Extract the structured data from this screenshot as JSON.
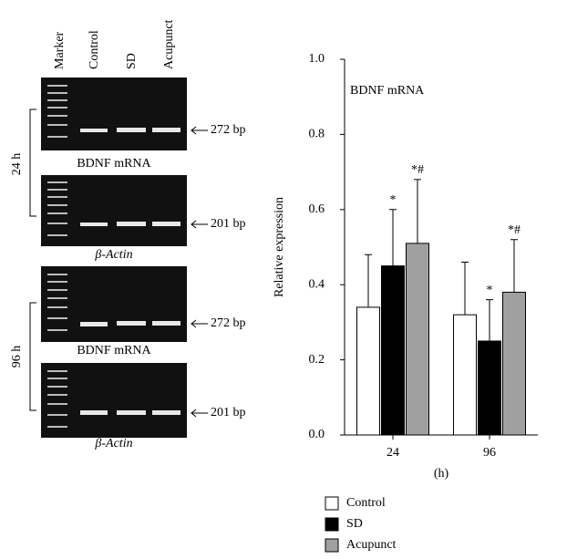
{
  "gel": {
    "lanes": [
      "Marker",
      "Control",
      "SD",
      "Acupunct"
    ],
    "time_labels": [
      "24 h",
      "96 h"
    ],
    "panels": [
      {
        "label": "BDNF mRNA",
        "size": "272 bp"
      },
      {
        "label": "β-Actin",
        "size": "201 bp"
      },
      {
        "label": "BDNF mRNA",
        "size": "272 bp"
      },
      {
        "label": "β-Actin",
        "size": "201 bp"
      }
    ]
  },
  "chart_data": {
    "type": "bar",
    "title": "BDNF mRNA",
    "y_label": "Relative expression",
    "x_label": "(h)",
    "categories": [
      "24",
      "96"
    ],
    "series": [
      {
        "name": "Control",
        "color": "#ffffff",
        "values": [
          0.34,
          0.32
        ],
        "errors": [
          0.14,
          0.14
        ]
      },
      {
        "name": "SD",
        "color": "#000000",
        "values": [
          0.45,
          0.25
        ],
        "errors": [
          0.15,
          0.11
        ],
        "markers": [
          "*",
          "*"
        ]
      },
      {
        "name": "Acupunct",
        "color": "#a0a0a0",
        "values": [
          0.51,
          0.38
        ],
        "errors": [
          0.17,
          0.14
        ],
        "markers": [
          "*#",
          "*#"
        ]
      }
    ],
    "ylim": [
      0,
      1
    ],
    "yticks": [
      {
        "value": 0,
        "label": "0.0"
      },
      0.2,
      0.4,
      0.6,
      0.8,
      {
        "value": 1,
        "label": "1.0"
      }
    ],
    "legend": "bottom"
  }
}
